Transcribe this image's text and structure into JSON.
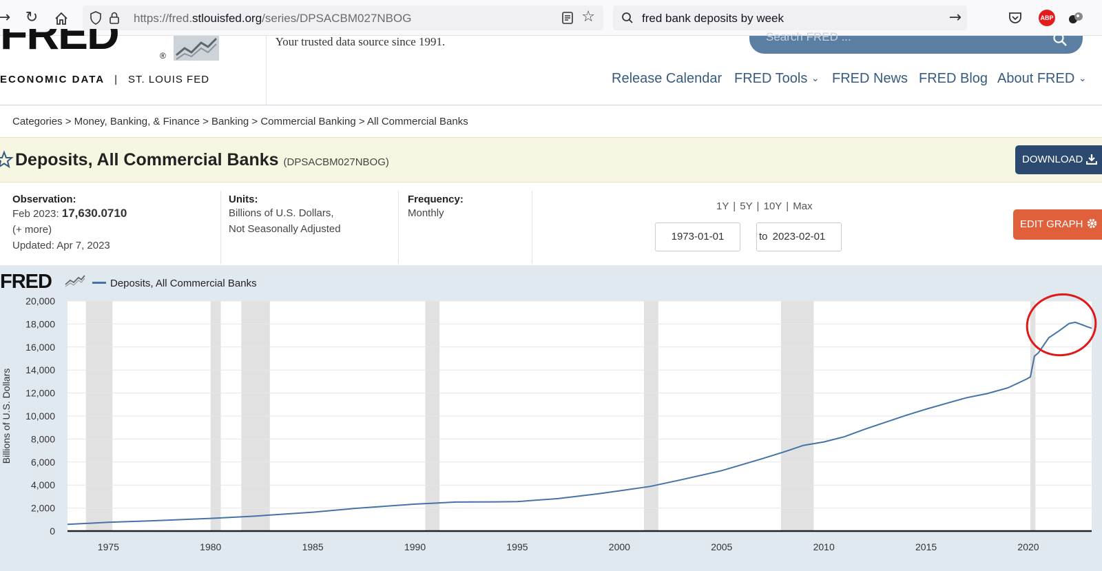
{
  "browser": {
    "url_prefix": "https://fred.",
    "url_domain": "stlouisfed.org",
    "url_path": "/series/DPSACBM027NBOG",
    "search_query": "fred bank deposits by week",
    "abp_label": "ABP"
  },
  "header": {
    "logo_text": "FRED",
    "logo_reg": "®",
    "econ_data": "ECONOMIC DATA",
    "separator": "|",
    "stl_fed": "ST. LOUIS FED",
    "tagline": "Your trusted data source since 1991.",
    "search_placeholder": "Search FRED ...",
    "nav": [
      {
        "label": "Release Calendar",
        "dropdown": false
      },
      {
        "label": "FRED Tools",
        "dropdown": true
      },
      {
        "label": "FRED News",
        "dropdown": false
      },
      {
        "label": "FRED Blog",
        "dropdown": false
      },
      {
        "label": "About FRED",
        "dropdown": true
      }
    ]
  },
  "breadcrumb": {
    "text": "Categories > Money, Banking, & Finance > Banking > Commercial Banking > All Commercial Banks"
  },
  "series": {
    "title": "Deposits, All Commercial Banks",
    "id": "(DPSACBM027NBOG)",
    "download_label": "DOWNLOAD"
  },
  "meta": {
    "observation_label": "Observation:",
    "observation_date": "Feb 2023:",
    "observation_value": "17,630.0710",
    "more": "(+ more)",
    "updated": "Updated: Apr 7, 2023",
    "units_label": "Units:",
    "units_line1": "Billions of U.S. Dollars,",
    "units_line2": "Not Seasonally Adjusted",
    "frequency_label": "Frequency:",
    "frequency_value": "Monthly",
    "ranges": "1Y | 5Y | 10Y | Max",
    "date_from": "1973-01-01",
    "to_label": "to",
    "date_to": "2023-02-01",
    "edit_label": "EDIT GRAPH"
  },
  "chart_data": {
    "type": "line",
    "title": "",
    "legend": "Deposits, All Commercial Banks",
    "ylabel": "Billions of U.S. Dollars",
    "xlabel": "",
    "xlim": [
      1973.0,
      2023.1
    ],
    "ylim": [
      0,
      20000
    ],
    "yticks": [
      0,
      2000,
      4000,
      6000,
      8000,
      10000,
      12000,
      14000,
      16000,
      18000,
      20000
    ],
    "ytick_labels": [
      "0",
      "2,000",
      "4,000",
      "6,000",
      "8,000",
      "10,000",
      "12,000",
      "14,000",
      "16,000",
      "18,000",
      "20,000"
    ],
    "xticks": [
      1975,
      1980,
      1985,
      1990,
      1995,
      2000,
      2005,
      2010,
      2015,
      2020
    ],
    "xtick_labels": [
      "1975",
      "1980",
      "1985",
      "1990",
      "1995",
      "2000",
      "2005",
      "2010",
      "2015",
      "2020"
    ],
    "grid": "horizontal",
    "line_color": "#4572a7",
    "recessions": [
      [
        1973.9,
        1975.2
      ],
      [
        1980.0,
        1980.5
      ],
      [
        1981.5,
        1982.9
      ],
      [
        1990.5,
        1991.2
      ],
      [
        2001.2,
        2001.9
      ],
      [
        2007.9,
        2009.5
      ],
      [
        2020.1,
        2020.35
      ]
    ],
    "series": [
      {
        "name": "Deposits, All Commercial Banks",
        "x": [
          1973.0,
          1975.0,
          1977.0,
          1980.0,
          1982.0,
          1985.0,
          1987.0,
          1990.0,
          1992.0,
          1994.0,
          1995.0,
          1997.0,
          1999.0,
          2000.0,
          2001.5,
          2003.0,
          2005.0,
          2007.0,
          2008.0,
          2009.0,
          2010.0,
          2011.0,
          2012.0,
          2013.0,
          2014.0,
          2015.0,
          2016.0,
          2017.0,
          2018.0,
          2019.0,
          2019.9,
          2020.1,
          2020.3,
          2020.5,
          2021.0,
          2021.5,
          2022.0,
          2022.3,
          2022.6,
          2022.9,
          2023.1
        ],
        "values": [
          580,
          760,
          880,
          1100,
          1280,
          1640,
          1960,
          2340,
          2520,
          2540,
          2560,
          2820,
          3250,
          3500,
          3880,
          4450,
          5250,
          6300,
          6850,
          7450,
          7750,
          8200,
          8850,
          9450,
          10050,
          10600,
          11100,
          11600,
          11950,
          12450,
          13200,
          13400,
          15200,
          15500,
          16800,
          17400,
          18050,
          18150,
          17950,
          17750,
          17630
        ]
      }
    ],
    "annotation": "red circle highlighting 2020–2023 peak and decline"
  }
}
